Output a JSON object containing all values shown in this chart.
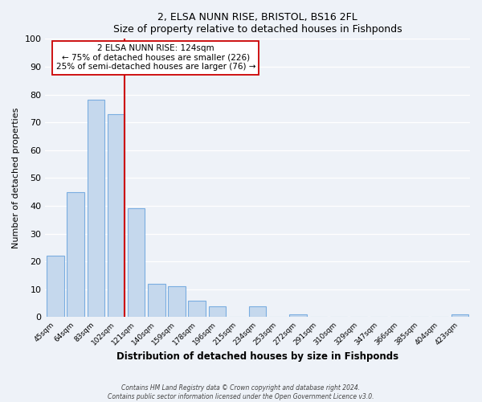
{
  "title": "2, ELSA NUNN RISE, BRISTOL, BS16 2FL",
  "subtitle": "Size of property relative to detached houses in Fishponds",
  "xlabel": "Distribution of detached houses by size in Fishponds",
  "ylabel": "Number of detached properties",
  "bar_labels": [
    "45sqm",
    "64sqm",
    "83sqm",
    "102sqm",
    "121sqm",
    "140sqm",
    "159sqm",
    "178sqm",
    "196sqm",
    "215sqm",
    "234sqm",
    "253sqm",
    "272sqm",
    "291sqm",
    "310sqm",
    "329sqm",
    "347sqm",
    "366sqm",
    "385sqm",
    "404sqm",
    "423sqm"
  ],
  "bar_values": [
    22,
    45,
    78,
    73,
    39,
    12,
    11,
    6,
    4,
    0,
    4,
    0,
    1,
    0,
    0,
    0,
    0,
    0,
    0,
    0,
    1
  ],
  "bar_color": "#c5d8ed",
  "bar_edge_color": "#7aade0",
  "highlight_color": "#cc0000",
  "annotation_text_line1": "2 ELSA NUNN RISE: 124sqm",
  "annotation_text_line2": "← 75% of detached houses are smaller (226)",
  "annotation_text_line3": "25% of semi-detached houses are larger (76) →",
  "annotation_box_color": "#ffffff",
  "annotation_box_edge": "#cc0000",
  "ylim": [
    0,
    100
  ],
  "footer_line1": "Contains HM Land Registry data © Crown copyright and database right 2024.",
  "footer_line2": "Contains public sector information licensed under the Open Government Licence v3.0.",
  "background_color": "#eef2f8",
  "plot_bg_color": "#eef2f8",
  "title_fontsize": 9,
  "subtitle_fontsize": 8.5
}
